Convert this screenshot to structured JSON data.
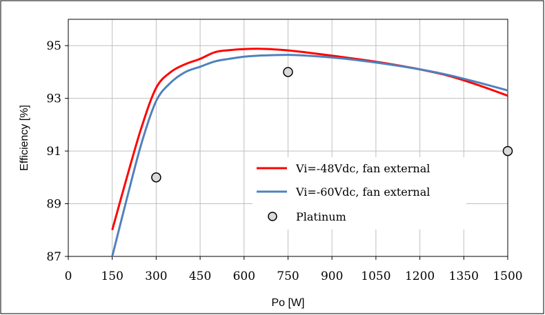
{
  "chart_data": {
    "type": "line",
    "xlabel": "Po [W]",
    "ylabel": "Efficiency [%]",
    "xlim": [
      0,
      1500
    ],
    "ylim": [
      87,
      96
    ],
    "x_ticks": [
      "0",
      "150",
      "300",
      "450",
      "600",
      "750",
      "900",
      "1050",
      "1200",
      "1350",
      "1500"
    ],
    "y_ticks": [
      "87",
      "89",
      "91",
      "93",
      "95"
    ],
    "grid": true,
    "legend_position": "bottom-right",
    "series": [
      {
        "name": "Vi=-48Vdc, fan external",
        "color": "#ff0000",
        "type": "line",
        "x": [
          150,
          200,
          250,
          300,
          350,
          400,
          450,
          500,
          550,
          600,
          650,
          700,
          750,
          800,
          900,
          1000,
          1100,
          1200,
          1300,
          1400,
          1500
        ],
        "y": [
          88.0,
          90.0,
          91.9,
          93.4,
          94.0,
          94.3,
          94.5,
          94.75,
          94.83,
          94.87,
          94.88,
          94.86,
          94.82,
          94.76,
          94.62,
          94.47,
          94.3,
          94.1,
          93.85,
          93.5,
          93.1
        ]
      },
      {
        "name": "Vi=-60Vdc, fan external",
        "color": "#4f81bd",
        "type": "line",
        "x": [
          150,
          200,
          250,
          300,
          350,
          400,
          450,
          500,
          550,
          600,
          650,
          700,
          750,
          800,
          900,
          1000,
          1100,
          1200,
          1300,
          1400,
          1500
        ],
        "y": [
          87.0,
          89.2,
          91.3,
          92.9,
          93.6,
          94.0,
          94.2,
          94.4,
          94.5,
          94.58,
          94.62,
          94.64,
          94.65,
          94.63,
          94.55,
          94.43,
          94.28,
          94.1,
          93.88,
          93.6,
          93.3
        ]
      },
      {
        "name": "Platinum",
        "color": "#d9d9d9",
        "type": "scatter",
        "x": [
          300,
          750,
          1500
        ],
        "y": [
          90,
          94,
          91
        ]
      }
    ]
  }
}
